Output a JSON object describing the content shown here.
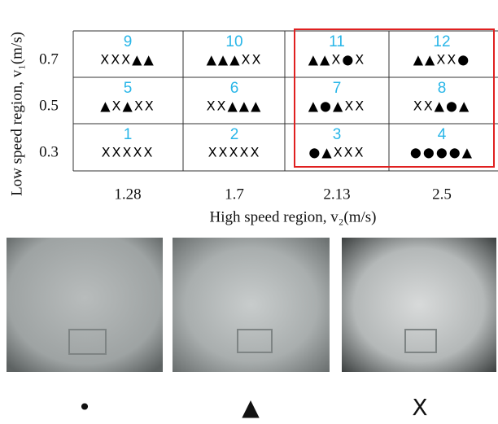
{
  "y_axis": {
    "label": "Low speed region, v₁(m/s)",
    "ticks": [
      "0.7",
      "0.5",
      "0.3"
    ]
  },
  "x_axis": {
    "label": "High speed region, v₂(m/s)",
    "ticks": [
      "1.28",
      "1.7",
      "2.13",
      "2.5"
    ]
  },
  "grid": {
    "rows": [
      {
        "cells": [
          {
            "number": "9",
            "symbols": "XXX▲▲"
          },
          {
            "number": "10",
            "symbols": "▲▲▲XX"
          },
          {
            "number": "11",
            "symbols": "▲▲X●X"
          },
          {
            "number": "12",
            "symbols": "▲▲XX●"
          }
        ]
      },
      {
        "cells": [
          {
            "number": "5",
            "symbols": "▲X▲XX"
          },
          {
            "number": "6",
            "symbols": "XX▲▲▲"
          },
          {
            "number": "7",
            "symbols": "▲●▲XX"
          },
          {
            "number": "8",
            "symbols": "XX▲●▲"
          }
        ]
      },
      {
        "cells": [
          {
            "number": "1",
            "symbols": "XXXXX"
          },
          {
            "number": "2",
            "symbols": "XXXXX"
          },
          {
            "number": "3",
            "symbols": "●▲XXX"
          },
          {
            "number": "4",
            "symbols": "●●●●▲"
          }
        ]
      }
    ]
  },
  "legend": [
    "•",
    "▲",
    "X"
  ]
}
